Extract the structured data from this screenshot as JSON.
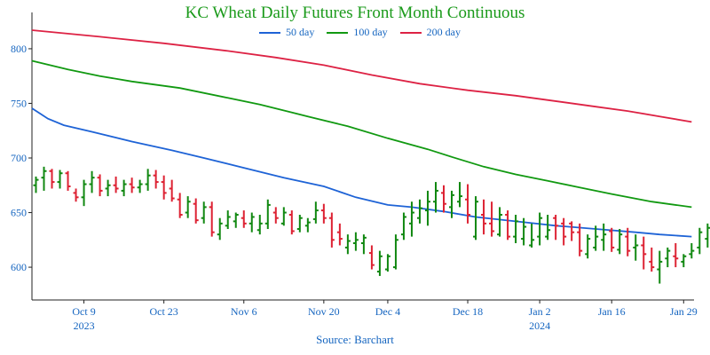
{
  "colors": {
    "title": "#1a9a1a",
    "text": "#1565c0",
    "axis": "#222222",
    "up": "#118811",
    "down": "#dd2233",
    "ma50": "#1e63d6",
    "ma100": "#119911",
    "ma200": "#dd2244"
  },
  "chart_data": {
    "type": "ohlc",
    "title": "KC Wheat Daily Futures Front Month Continuous",
    "source": "Source: Barchart",
    "ylim": [
      570,
      830
    ],
    "yticks": [
      600,
      650,
      700,
      750,
      800
    ],
    "xticks": [
      {
        "label": "Oct 9",
        "year": "2023",
        "index": 6
      },
      {
        "label": "Oct 23",
        "year": "",
        "index": 16
      },
      {
        "label": "Nov 6",
        "year": "",
        "index": 26
      },
      {
        "label": "Nov 20",
        "year": "",
        "index": 36
      },
      {
        "label": "Dec 4",
        "year": "",
        "index": 44
      },
      {
        "label": "Dec 18",
        "year": "",
        "index": 54
      },
      {
        "label": "Jan 2",
        "year": "2024",
        "index": 63
      },
      {
        "label": "Jan 16",
        "year": "",
        "index": 72
      },
      {
        "label": "Jan 29",
        "year": "",
        "index": 81
      }
    ],
    "x_index_range": [
      -0.5,
      82.3
    ],
    "legend": [
      "50 day",
      "100 day",
      "200 day"
    ],
    "ohlc": [
      [
        675,
        683,
        668,
        680
      ],
      [
        682,
        692,
        670,
        688
      ],
      [
        688,
        690,
        672,
        678
      ],
      [
        678,
        689,
        672,
        686
      ],
      [
        686,
        688,
        670,
        674
      ],
      [
        668,
        672,
        660,
        664
      ],
      [
        664,
        680,
        656,
        676
      ],
      [
        676,
        688,
        668,
        682
      ],
      [
        682,
        685,
        665,
        670
      ],
      [
        672,
        680,
        665,
        675
      ],
      [
        675,
        683,
        668,
        672
      ],
      [
        670,
        680,
        665,
        676
      ],
      [
        676,
        682,
        668,
        673
      ],
      [
        673,
        680,
        668,
        676
      ],
      [
        676,
        690,
        670,
        684
      ],
      [
        684,
        689,
        672,
        678
      ],
      [
        678,
        684,
        662,
        668
      ],
      [
        672,
        680,
        660,
        663
      ],
      [
        662,
        668,
        645,
        648
      ],
      [
        650,
        665,
        645,
        660
      ],
      [
        658,
        663,
        640,
        643
      ],
      [
        645,
        660,
        640,
        655
      ],
      [
        655,
        660,
        628,
        632
      ],
      [
        630,
        645,
        625,
        640
      ],
      [
        638,
        652,
        635,
        646
      ],
      [
        642,
        650,
        636,
        648
      ],
      [
        645,
        652,
        636,
        640
      ],
      [
        640,
        650,
        632,
        646
      ],
      [
        634,
        648,
        630,
        640
      ],
      [
        640,
        662,
        635,
        657
      ],
      [
        650,
        655,
        640,
        645
      ],
      [
        640,
        655,
        638,
        650
      ],
      [
        648,
        652,
        630,
        633
      ],
      [
        635,
        648,
        632,
        645
      ],
      [
        638,
        645,
        632,
        641
      ],
      [
        644,
        660,
        640,
        652
      ],
      [
        652,
        658,
        640,
        645
      ],
      [
        645,
        650,
        618,
        625
      ],
      [
        632,
        640,
        620,
        626
      ],
      [
        618,
        630,
        612,
        624
      ],
      [
        622,
        632,
        615,
        625
      ],
      [
        622,
        630,
        612,
        627
      ],
      [
        613,
        620,
        598,
        602
      ],
      [
        596,
        615,
        592,
        610
      ],
      [
        598,
        612,
        596,
        610
      ],
      [
        600,
        630,
        598,
        625
      ],
      [
        630,
        650,
        625,
        646
      ],
      [
        640,
        660,
        628,
        650
      ],
      [
        645,
        662,
        640,
        654
      ],
      [
        652,
        670,
        638,
        660
      ],
      [
        660,
        678,
        650,
        670
      ],
      [
        668,
        675,
        650,
        658
      ],
      [
        655,
        670,
        645,
        666
      ],
      [
        660,
        678,
        655,
        665
      ],
      [
        662,
        676,
        640,
        648
      ],
      [
        628,
        665,
        625,
        660
      ],
      [
        648,
        662,
        630,
        640
      ],
      [
        640,
        660,
        628,
        633
      ],
      [
        630,
        655,
        628,
        648
      ],
      [
        648,
        652,
        625,
        628
      ],
      [
        628,
        648,
        622,
        642
      ],
      [
        626,
        645,
        620,
        637
      ],
      [
        620,
        640,
        618,
        625
      ],
      [
        628,
        650,
        620,
        645
      ],
      [
        628,
        648,
        625,
        634
      ],
      [
        645,
        648,
        625,
        638
      ],
      [
        640,
        645,
        620,
        628
      ],
      [
        640,
        642,
        624,
        632
      ],
      [
        632,
        640,
        610,
        615
      ],
      [
        612,
        630,
        608,
        626
      ],
      [
        618,
        638,
        615,
        628
      ],
      [
        625,
        640,
        615,
        630
      ],
      [
        633,
        636,
        614,
        618
      ],
      [
        616,
        635,
        612,
        630
      ],
      [
        628,
        636,
        610,
        615
      ],
      [
        618,
        630,
        606,
        620
      ],
      [
        620,
        628,
        598,
        612
      ],
      [
        605,
        618,
        596,
        600
      ],
      [
        598,
        615,
        585,
        605
      ],
      [
        608,
        618,
        600,
        615
      ],
      [
        610,
        622,
        600,
        608
      ],
      [
        605,
        612,
        600,
        610
      ],
      [
        612,
        622,
        608,
        615
      ],
      [
        618,
        636,
        612,
        632
      ],
      [
        626,
        640,
        618,
        636
      ],
      [
        636,
        642,
        610,
        620
      ],
      [
        625,
        628,
        606,
        618
      ]
    ],
    "series": [
      {
        "name": "50 day",
        "color_key": "ma50",
        "x": [
          -0.5,
          1.5,
          3.5,
          7,
          12,
          17,
          21,
          26,
          31,
          36,
          40,
          44,
          47,
          51,
          55,
          60,
          65,
          70,
          75,
          78,
          82
        ],
        "values": [
          745.5,
          736,
          730,
          724,
          715,
          707,
          700,
          691,
          682,
          674,
          664,
          657,
          655,
          651,
          646,
          642,
          638,
          635,
          632,
          630,
          628
        ]
      },
      {
        "name": "100 day",
        "color_key": "ma100",
        "x": [
          -0.5,
          4,
          8,
          12,
          18,
          24,
          28,
          34,
          39,
          44,
          49,
          52,
          56,
          60,
          64,
          68,
          72,
          77,
          82
        ],
        "values": [
          789,
          781,
          775,
          770,
          764,
          755,
          749,
          738,
          729,
          718,
          708,
          701,
          692,
          685,
          679,
          673,
          667,
          660,
          655
        ]
      },
      {
        "name": "200 day",
        "color_key": "ma200",
        "x": [
          -0.5,
          8,
          16,
          24,
          30,
          36,
          42,
          48,
          54,
          60,
          66,
          70,
          74,
          78,
          82
        ],
        "values": [
          817,
          811,
          805,
          798,
          792,
          785,
          776,
          768,
          762,
          757,
          751,
          747,
          743,
          738,
          733
        ]
      }
    ]
  }
}
